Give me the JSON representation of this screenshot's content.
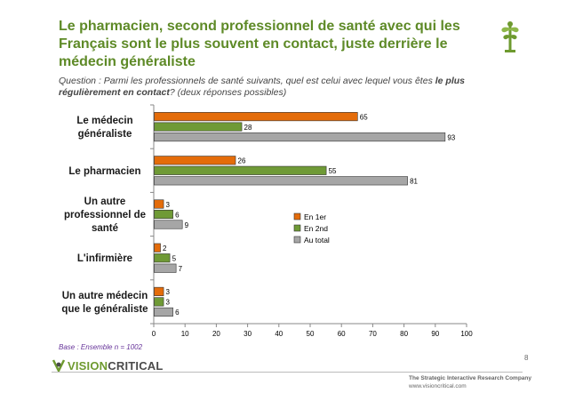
{
  "slide": {
    "title": "Le pharmacien, second professionnel de santé avec qui les Français sont le plus souvent en contact, juste derrière le médecin généraliste",
    "question_prefix": "Question : Parmi les professionnels de santé suivants, quel est celui avec lequel vous êtes ",
    "question_bold": "le plus régulièrement en contact",
    "question_suffix": "? (deux réponses possibles)",
    "base_note": "Base : Ensemble n = 1002",
    "page_number": "8"
  },
  "branding": {
    "logo_prefix": "VISION",
    "logo_suffix": "CRITICAL",
    "tagline": "The Strategic Interactive Research Company",
    "url": "www.visioncritical.com",
    "green": "#6e9a2f",
    "logo_mark_icon": "vision-critical-mark-icon",
    "corner_icon": "caduceus-plant-icon"
  },
  "chart_data": {
    "type": "bar",
    "orientation": "horizontal",
    "categories": [
      "Le médecin généraliste",
      "Le pharmacien",
      "Un autre professionnel de santé",
      "L'infirmière",
      "Un autre médecin que le généraliste"
    ],
    "series": [
      {
        "name": "En 1er",
        "color": "#e46c0a",
        "values": [
          65,
          26,
          3,
          2,
          3
        ]
      },
      {
        "name": "En 2nd",
        "color": "#6f9a36",
        "values": [
          28,
          55,
          6,
          5,
          3
        ]
      },
      {
        "name": "Au total",
        "color": "#a6a6a6",
        "values": [
          93,
          81,
          9,
          7,
          6
        ]
      }
    ],
    "xlim": [
      0,
      100
    ],
    "xticks": [
      0,
      10,
      20,
      30,
      40,
      50,
      60,
      70,
      80,
      90,
      100
    ],
    "grid": false,
    "legend_position": "right-middle",
    "data_labels": true
  }
}
